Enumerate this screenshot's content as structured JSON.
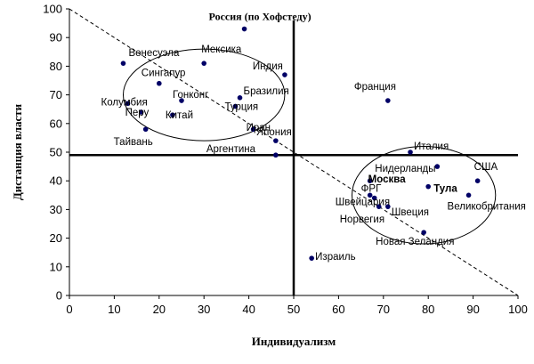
{
  "chart_data": {
    "type": "scatter",
    "title": "",
    "xlabel": "Индивидуализм",
    "ylabel": "Дистанция власти",
    "xlim": [
      0,
      100
    ],
    "ylim": [
      0,
      100
    ],
    "x_ticks": [
      0,
      10,
      20,
      30,
      40,
      50,
      60,
      70,
      80,
      90,
      100
    ],
    "y_ticks": [
      0,
      10,
      20,
      30,
      40,
      50,
      60,
      70,
      80,
      90,
      100
    ],
    "grid": false,
    "axis_lines": {
      "x_divider": 50,
      "y_divider": 49
    },
    "diagonal_trend": {
      "from": [
        0,
        100
      ],
      "to": [
        100,
        0
      ],
      "style": "dashed"
    },
    "clusters": [
      {
        "center": [
          30,
          70
        ],
        "radii": [
          18,
          16
        ]
      },
      {
        "center": [
          79,
          35
        ],
        "radii": [
          16,
          17
        ]
      }
    ],
    "points": [
      {
        "x": 39,
        "y": 93,
        "label": "Россия (по Хофстеду)",
        "bold": true
      },
      {
        "x": 12,
        "y": 81,
        "label": "Венесуэла"
      },
      {
        "x": 30,
        "y": 81,
        "label": "Мексика"
      },
      {
        "x": 48,
        "y": 77,
        "label": "Индия"
      },
      {
        "x": 20,
        "y": 74,
        "label": "Сингапур"
      },
      {
        "x": 13,
        "y": 67,
        "label": "Колумбия"
      },
      {
        "x": 25,
        "y": 68,
        "label": "Гонконг"
      },
      {
        "x": 38,
        "y": 69,
        "label": "Бразилия"
      },
      {
        "x": 16,
        "y": 64,
        "label": "Перу"
      },
      {
        "x": 23,
        "y": 63,
        "label": "Китай"
      },
      {
        "x": 37,
        "y": 66,
        "label": "Турция"
      },
      {
        "x": 41,
        "y": 58,
        "label": "Иран"
      },
      {
        "x": 17,
        "y": 58,
        "label": "Тайвань"
      },
      {
        "x": 46,
        "y": 54,
        "label": "Япония"
      },
      {
        "x": 46,
        "y": 49,
        "label": "Аргентина"
      },
      {
        "x": 71,
        "y": 68,
        "label": "Франция"
      },
      {
        "x": 76,
        "y": 50,
        "label": "Италия"
      },
      {
        "x": 82,
        "y": 45,
        "label": "Нидерланды"
      },
      {
        "x": 91,
        "y": 40,
        "label": "США"
      },
      {
        "x": 67,
        "y": 40,
        "label": "Москва",
        "bold": true
      },
      {
        "x": 80,
        "y": 38,
        "label": "Тула",
        "bold": true
      },
      {
        "x": 89,
        "y": 35,
        "label": "Великобритания"
      },
      {
        "x": 67,
        "y": 35,
        "label": "ФРГ"
      },
      {
        "x": 68,
        "y": 34,
        "label": "Швейцария"
      },
      {
        "x": 69,
        "y": 31,
        "label": "Норвегия"
      },
      {
        "x": 71,
        "y": 31,
        "label": "Швеция"
      },
      {
        "x": 79,
        "y": 22,
        "label": "Новая Зеландия"
      },
      {
        "x": 54,
        "y": 13,
        "label": "Израиль"
      }
    ]
  }
}
